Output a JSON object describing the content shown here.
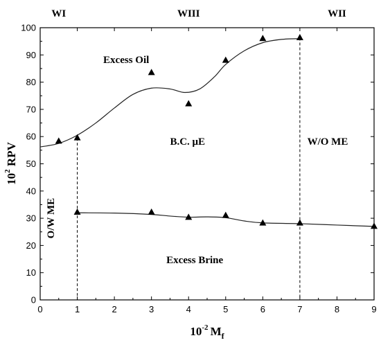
{
  "chart_data": {
    "type": "line",
    "xlim": [
      0,
      9
    ],
    "ylim": [
      0,
      100
    ],
    "x_ticks": [
      "0",
      "1",
      "2",
      "3",
      "4",
      "5",
      "6",
      "7",
      "8",
      "9"
    ],
    "y_ticks": [
      "0",
      "10",
      "20",
      "30",
      "40",
      "50",
      "60",
      "70",
      "80",
      "90",
      "100"
    ],
    "xlabel": {
      "base": "10",
      "exp": "-2",
      "var": "M",
      "sub": "f"
    },
    "ylabel": {
      "base": "10",
      "exp": "2",
      "var": " RPV"
    },
    "series": [
      {
        "marker": "triangle",
        "points": [
          [
            0.5,
            58.3
          ],
          [
            1,
            59.5
          ],
          [
            3,
            83.5
          ],
          [
            4,
            72
          ],
          [
            5,
            88
          ],
          [
            6,
            96
          ],
          [
            7,
            96.3
          ]
        ],
        "curve": [
          [
            0,
            56.2
          ],
          [
            0.5,
            57.5
          ],
          [
            1,
            60.5
          ],
          [
            1.5,
            65
          ],
          [
            2,
            70.5
          ],
          [
            2.5,
            75.5
          ],
          [
            3,
            77.8
          ],
          [
            3.5,
            77.5
          ],
          [
            3.9,
            76.2
          ],
          [
            4.3,
            77.5
          ],
          [
            4.7,
            82
          ],
          [
            5,
            86.5
          ],
          [
            5.5,
            91.5
          ],
          [
            6,
            94.5
          ],
          [
            6.5,
            95.7
          ],
          [
            7,
            96
          ]
        ]
      },
      {
        "marker": "triangle",
        "points": [
          [
            1,
            32.2
          ],
          [
            3,
            32.2
          ],
          [
            4,
            30.3
          ],
          [
            5,
            31
          ],
          [
            6,
            28.2
          ],
          [
            7,
            28.2
          ],
          [
            9,
            27
          ]
        ],
        "curve": [
          [
            1,
            32
          ],
          [
            2,
            31.9
          ],
          [
            3,
            31.4
          ],
          [
            3.5,
            30.8
          ],
          [
            4,
            30.4
          ],
          [
            4.5,
            30.5
          ],
          [
            5,
            30.2
          ],
          [
            5.5,
            29
          ],
          [
            6,
            28.3
          ],
          [
            7,
            28
          ],
          [
            8,
            27.5
          ],
          [
            9,
            27
          ]
        ]
      }
    ],
    "phase_boundaries": [
      1,
      7
    ],
    "regions": [
      {
        "label": "WI",
        "x": 0.5
      },
      {
        "label": "WIII",
        "x": 4
      },
      {
        "label": "WII",
        "x": 8
      }
    ],
    "annotations": [
      {
        "text": "Excess Oil",
        "x": 1.7,
        "y": 87
      },
      {
        "text": "B.C. μE",
        "x": 3.5,
        "y": 57
      },
      {
        "text": "W/O ME",
        "x": 7.2,
        "y": 57
      },
      {
        "text": "Excess Brine",
        "x": 3.4,
        "y": 13.5
      },
      {
        "text": "O/W ME",
        "x": 0.37,
        "y": 30,
        "rotate": -90
      }
    ]
  }
}
